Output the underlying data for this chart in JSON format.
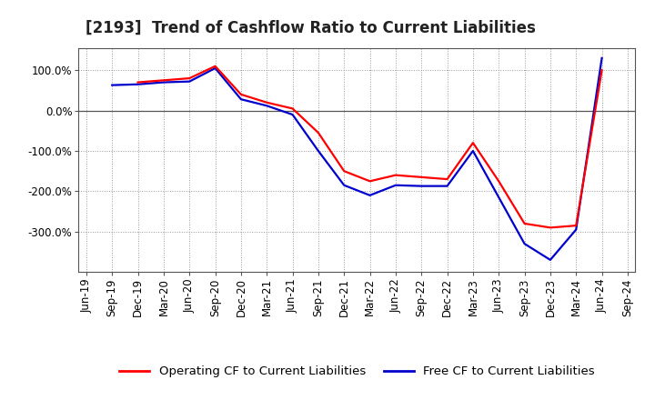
{
  "title": "[2193]  Trend of Cashflow Ratio to Current Liabilities",
  "x_labels": [
    "Jun-19",
    "Sep-19",
    "Dec-19",
    "Mar-20",
    "Jun-20",
    "Sep-20",
    "Dec-20",
    "Mar-21",
    "Jun-21",
    "Sep-21",
    "Dec-21",
    "Mar-22",
    "Jun-22",
    "Sep-22",
    "Dec-22",
    "Mar-23",
    "Jun-23",
    "Sep-23",
    "Dec-23",
    "Mar-24",
    "Jun-24",
    "Sep-24"
  ],
  "operating_cf": [
    null,
    null,
    70,
    75,
    80,
    110,
    40,
    20,
    5,
    -55,
    -150,
    -175,
    -160,
    -165,
    -170,
    -80,
    -175,
    -280,
    -290,
    -285,
    100,
    null
  ],
  "free_cf": [
    null,
    63,
    65,
    70,
    72,
    105,
    28,
    12,
    -10,
    -100,
    -185,
    -210,
    -185,
    -187,
    -187,
    -100,
    -215,
    -330,
    -370,
    -295,
    130,
    null
  ],
  "operating_color": "#ff0000",
  "free_color": "#0000cc",
  "background_color": "#ffffff",
  "plot_bg_color": "#ffffff",
  "ylim": [
    -400,
    155
  ],
  "yticks": [
    100,
    0,
    -100,
    -200,
    -300
  ],
  "ytick_labels": [
    "100.0%",
    "0.0%",
    "-100.0%",
    "-200.0%",
    "-300.0%"
  ],
  "grid_color": "#999999",
  "legend_labels": [
    "Operating CF to Current Liabilities",
    "Free CF to Current Liabilities"
  ],
  "title_fontsize": 12,
  "axis_fontsize": 8.5,
  "legend_fontsize": 9.5,
  "line_width": 1.6
}
